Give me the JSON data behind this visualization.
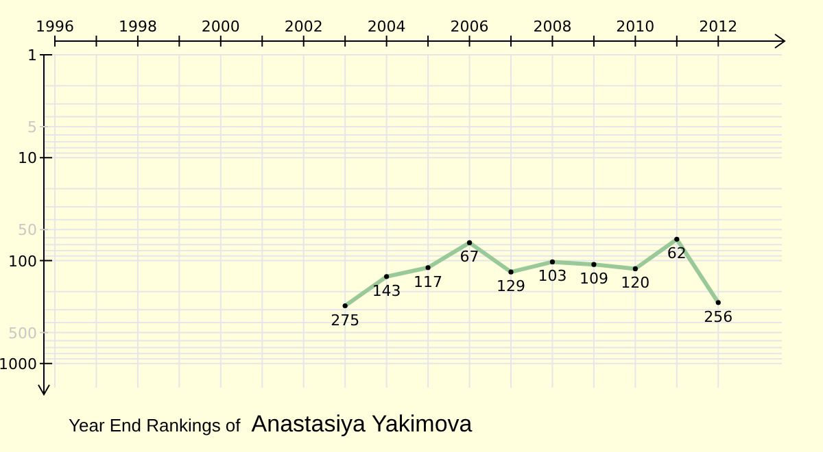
{
  "chart_data": {
    "type": "line",
    "title": "Year End Rankings of",
    "subtitle": "Anastasiya Yakimova",
    "x": [
      2003,
      2004,
      2005,
      2006,
      2007,
      2008,
      2009,
      2010,
      2011,
      2012
    ],
    "series": [
      {
        "color": "#99c999",
        "values": [
          275,
          143,
          117,
          67,
          129,
          103,
          109,
          120,
          62,
          256
        ]
      }
    ],
    "data_labels": true,
    "marker": "circle",
    "log": "y",
    "grid": true,
    "xlim": [
      1996,
      2013.6
    ],
    "xticks": [
      1996,
      {
        "value": 1997,
        "label": null
      },
      1998,
      {
        "value": 1999,
        "label": null
      },
      2000,
      {
        "value": 2001,
        "label": null
      },
      2002,
      {
        "value": 2003,
        "label": null
      },
      2004,
      {
        "value": 2005,
        "label": null
      },
      2006,
      {
        "value": 2007,
        "label": null
      },
      2008,
      {
        "value": 2009,
        "label": null
      },
      2010,
      {
        "value": 2011,
        "label": null
      },
      2012
    ],
    "ylim": [
      2000,
      1
    ],
    "yticks": [
      1,
      {
        "value": 2,
        "label": null
      },
      {
        "value": 3,
        "label": null
      },
      {
        "value": 4,
        "label": null
      },
      5,
      {
        "value": 6,
        "label": null
      },
      {
        "value": 7,
        "label": null
      },
      {
        "value": 8,
        "label": null
      },
      {
        "value": 9,
        "label": null
      },
      10,
      {
        "value": 20,
        "label": null
      },
      {
        "value": 30,
        "label": null
      },
      {
        "value": 40,
        "label": null
      },
      50,
      {
        "value": 60,
        "label": null
      },
      {
        "value": 70,
        "label": null
      },
      {
        "value": 80,
        "label": null
      },
      {
        "value": 90,
        "label": null
      },
      100,
      {
        "value": 200,
        "label": null
      },
      {
        "value": 300,
        "label": null
      },
      {
        "value": 400,
        "label": null
      },
      500,
      {
        "value": 600,
        "label": null
      },
      {
        "value": 700,
        "label": null
      },
      {
        "value": 800,
        "label": null
      },
      {
        "value": 900,
        "label": null
      },
      1000
    ]
  }
}
